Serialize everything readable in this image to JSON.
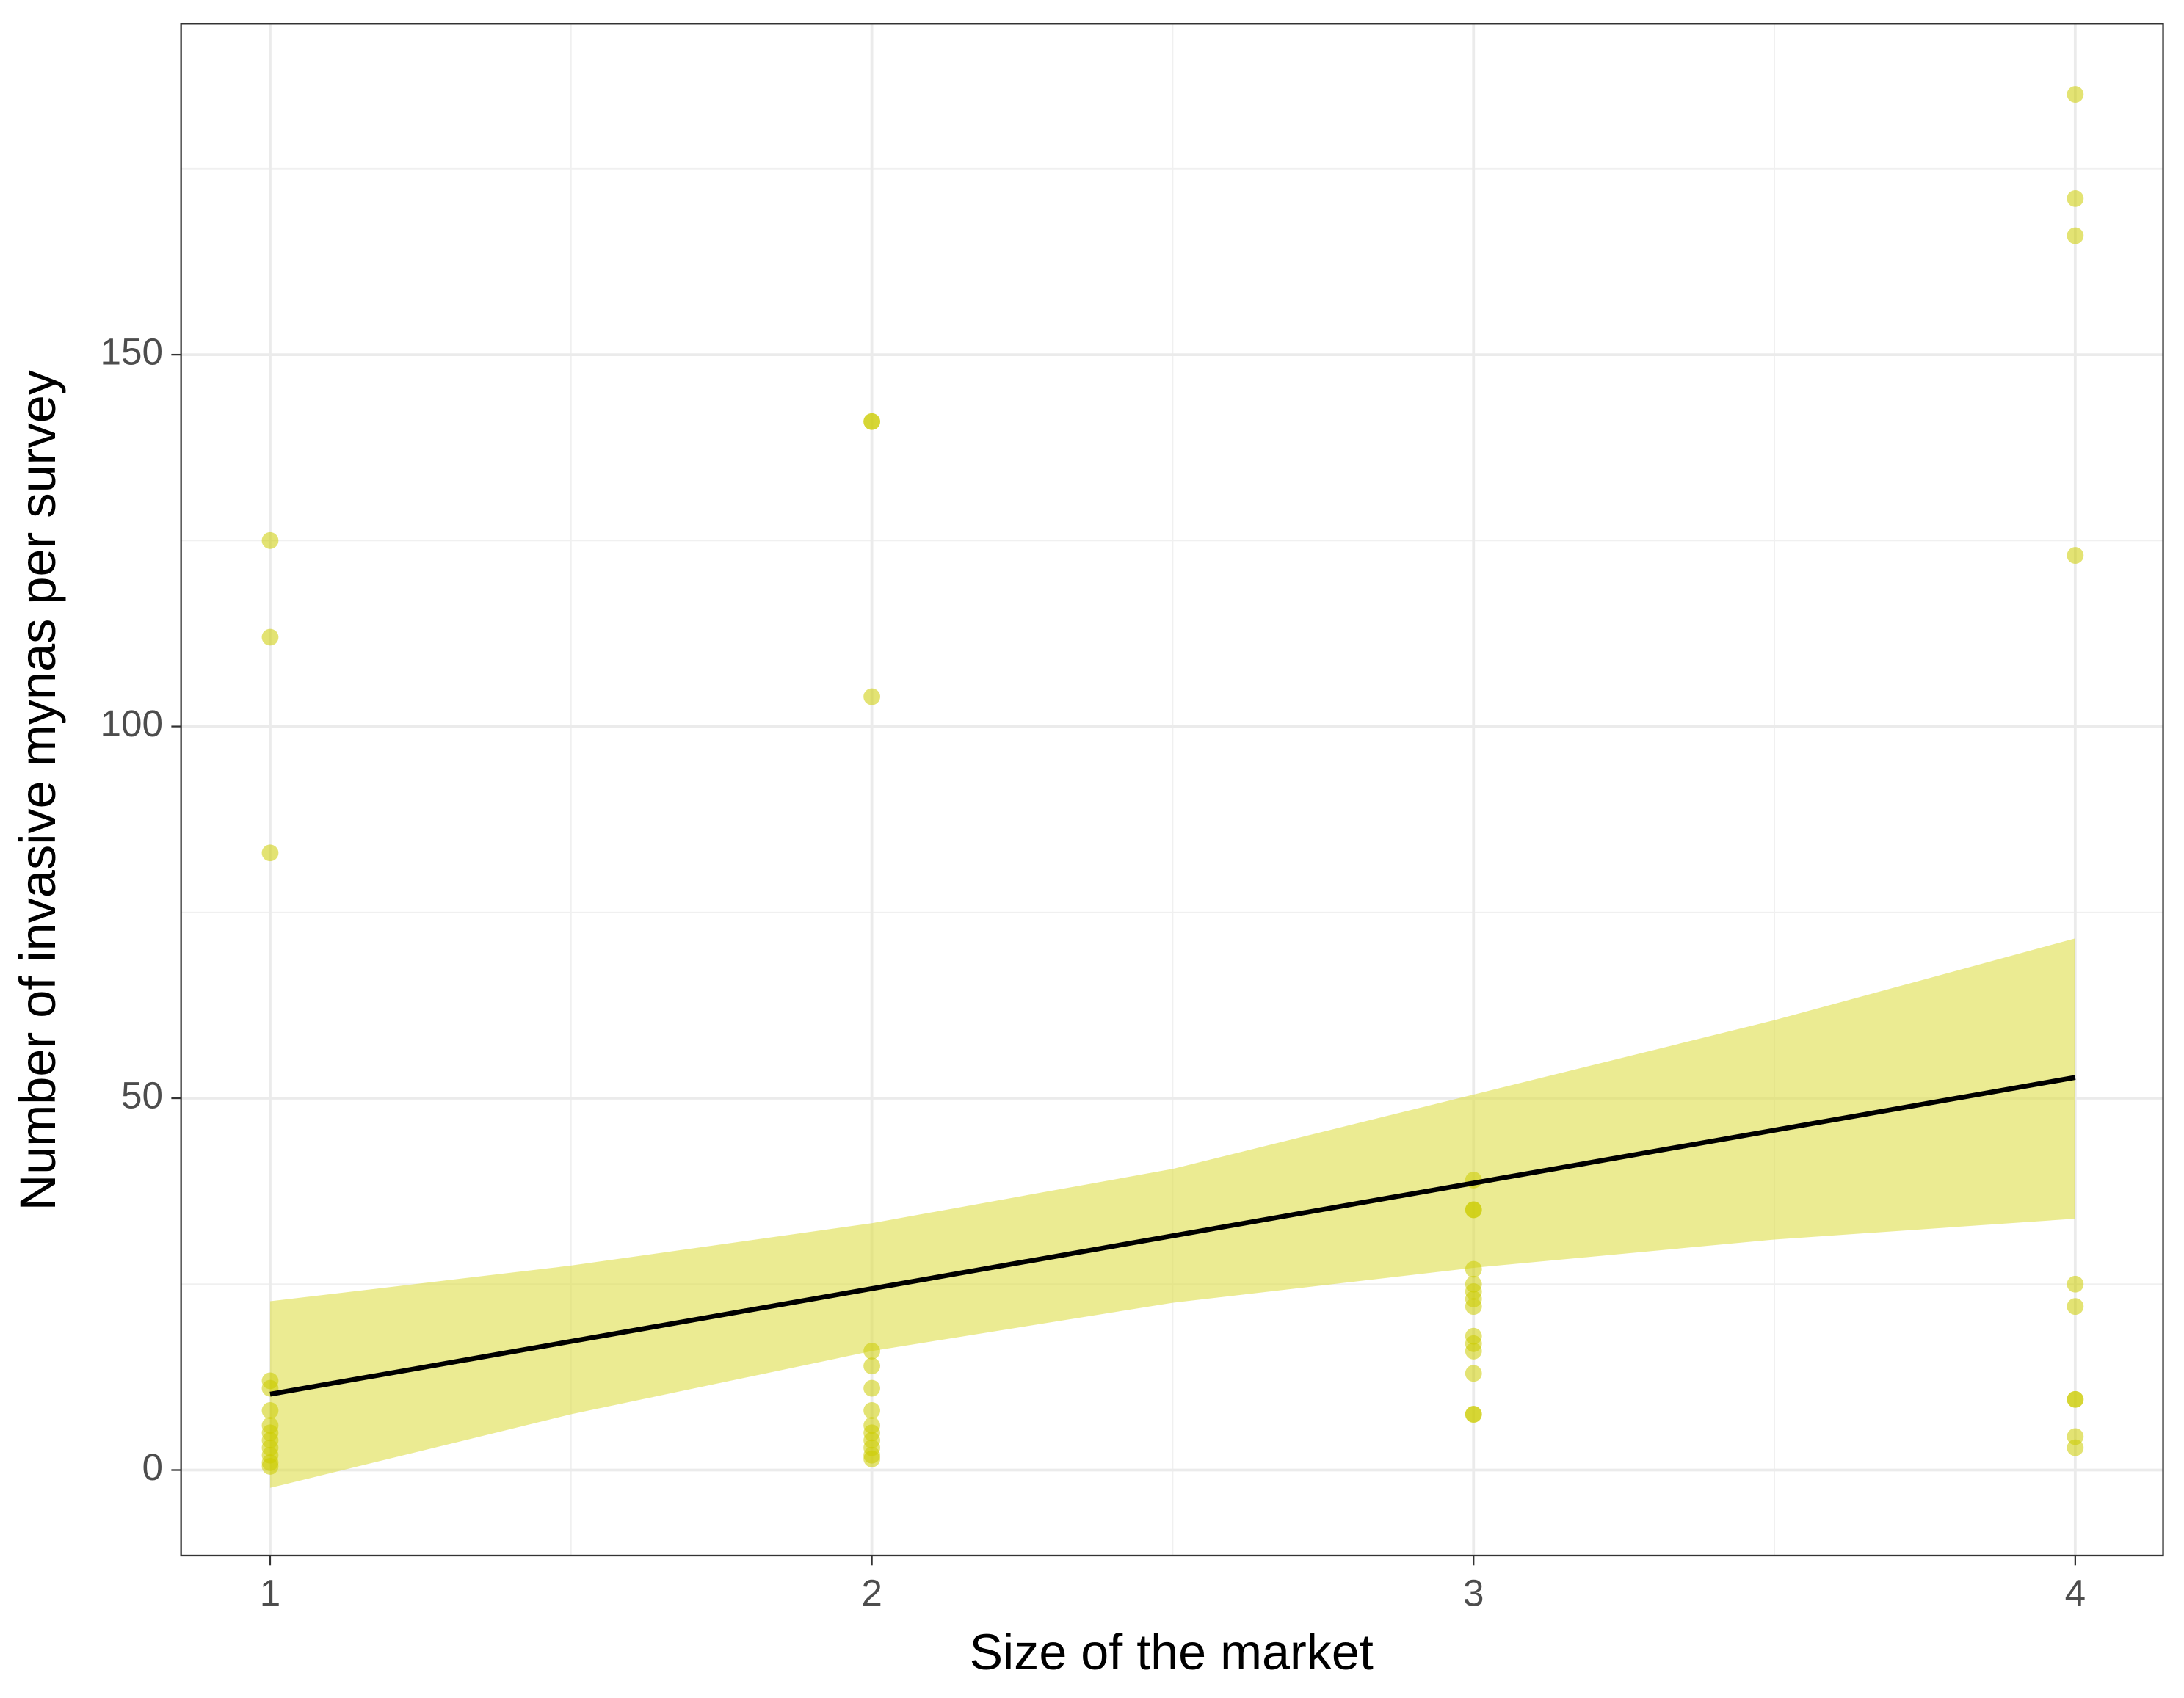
{
  "chart_data": {
    "type": "scatter",
    "x_label": "Size of the market",
    "y_label": "Number of invasive mynas per survey",
    "points": {
      "color": "#cccc00",
      "x": [
        1,
        1,
        1,
        1,
        1,
        1,
        1,
        1,
        1,
        1,
        1,
        1,
        1,
        2,
        2,
        2,
        2,
        2,
        2,
        2,
        2,
        2,
        2,
        2,
        2,
        2,
        3,
        3,
        3,
        3,
        3,
        3,
        3,
        3,
        3,
        3,
        3,
        3,
        3,
        3,
        4,
        4,
        4,
        4,
        4,
        4,
        4,
        4,
        4,
        4
      ],
      "y": [
        125,
        112,
        83,
        12,
        11,
        8,
        6,
        5,
        4,
        3,
        2,
        1,
        0.5,
        141,
        141,
        104,
        16,
        14,
        11,
        8,
        6,
        5,
        4,
        3,
        2,
        1.5,
        39,
        35,
        35,
        27,
        25,
        24,
        23,
        22,
        18,
        17,
        16,
        13,
        7.5,
        7.5,
        185,
        171,
        166,
        123,
        25,
        22,
        9.5,
        9.5,
        4.5,
        3
      ]
    },
    "fit": {
      "color": "#000000",
      "x": [
        1,
        4
      ],
      "y": [
        10.2,
        52.8
      ]
    },
    "band": {
      "color": "#dede4a",
      "x": [
        1,
        1.5,
        2,
        2.5,
        3,
        3.5,
        4
      ],
      "upper": [
        22.7,
        27.5,
        33.2,
        40.5,
        50.5,
        60.5,
        71.5
      ],
      "lower": [
        -2.4,
        7.5,
        16,
        22.5,
        27.2,
        31,
        33.8
      ]
    },
    "xlim": [
      0.852,
      4.146
    ],
    "ylim": [
      -11.5,
      194.5
    ],
    "xticks": [
      1,
      2,
      3,
      4
    ],
    "yticks": [
      0,
      50,
      100,
      150
    ],
    "x_minor_grid": [
      1.5,
      2.5,
      3.5
    ],
    "y_minor_grid": [
      25,
      75,
      125,
      175
    ],
    "grid": true
  }
}
